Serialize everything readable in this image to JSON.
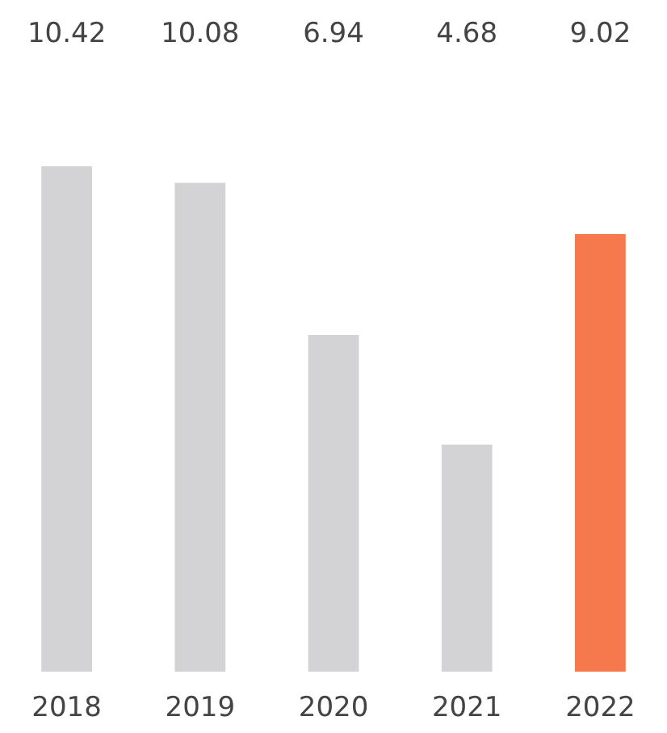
{
  "chart_data": {
    "type": "bar",
    "categories": [
      "2018",
      "2019",
      "2020",
      "2021",
      "2022"
    ],
    "values": [
      10.42,
      10.08,
      6.94,
      4.68,
      9.02
    ],
    "colors": [
      "#d3d3d5",
      "#d3d3d5",
      "#d3d3d5",
      "#d3d3d5",
      "#f5794c"
    ],
    "data_labels": true
  }
}
